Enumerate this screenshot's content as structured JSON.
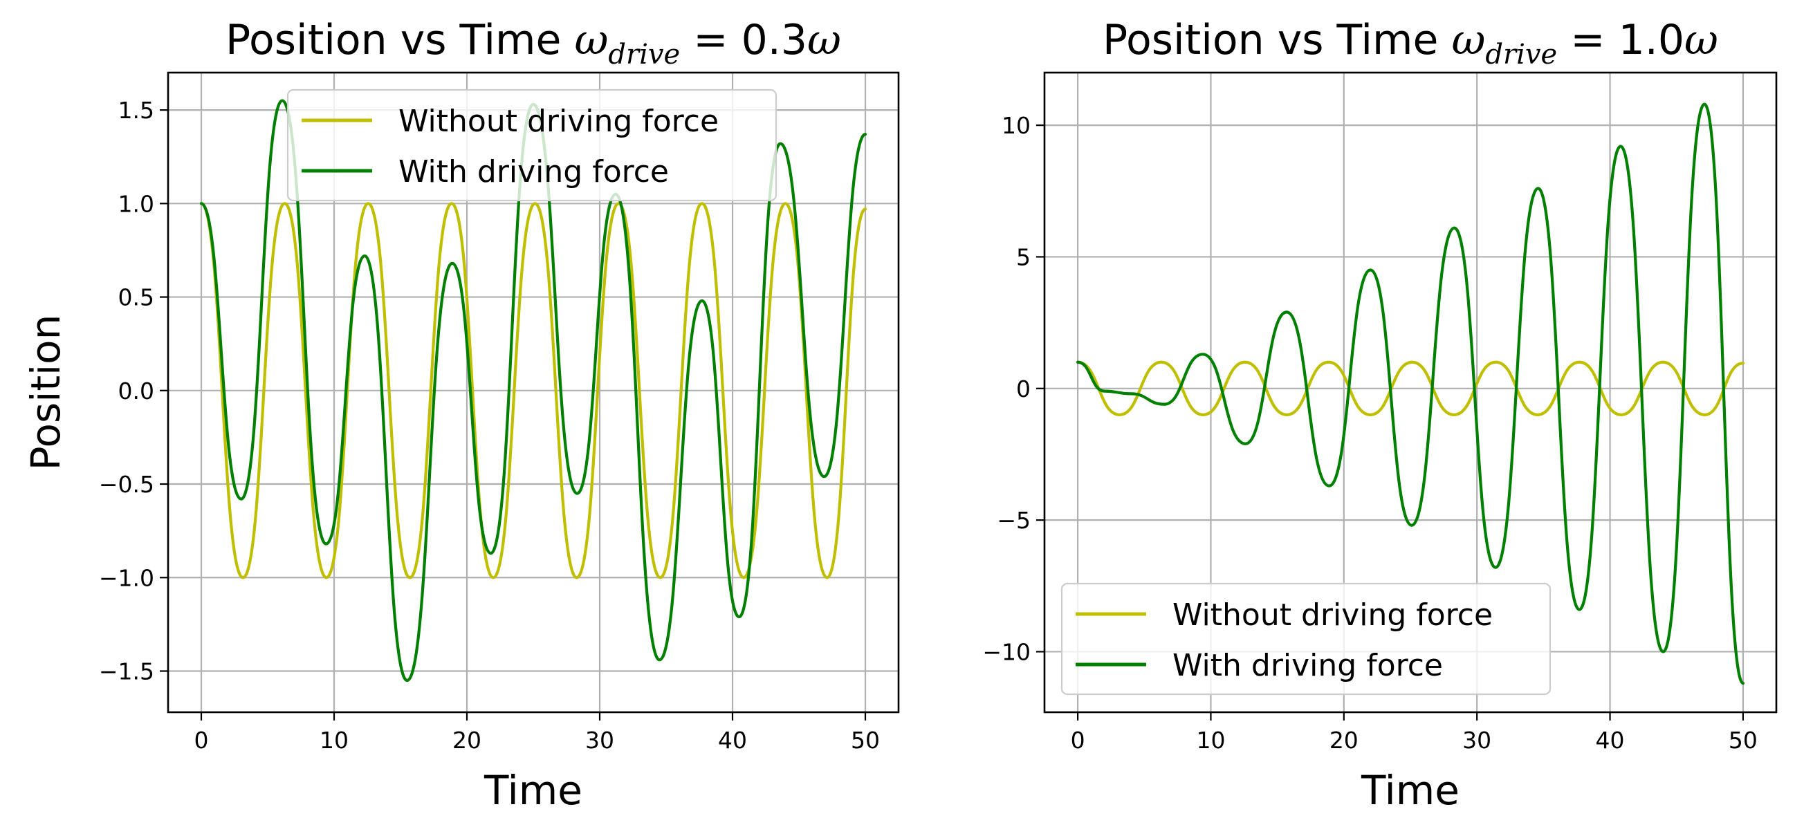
{
  "figure": {
    "background": "#ffffff"
  },
  "colors": {
    "without_driving_force": "#bfbf00",
    "with_driving_force": "#008000",
    "grid": "#b0b0b0"
  },
  "chart_data": [
    {
      "type": "line",
      "title": "Position vs Time",
      "title_math": {
        "omega": "ω",
        "subscript": "drive",
        "equals": " = ",
        "value": "0.3",
        "omega_end": "ω"
      },
      "xlabel": "Time",
      "ylabel": "Position",
      "xlim": [
        -2.5,
        52.5
      ],
      "ylim": [
        -1.72,
        1.7
      ],
      "xticks": [
        0,
        10,
        20,
        30,
        40,
        50
      ],
      "xtick_labels": [
        "0",
        "10",
        "20",
        "30",
        "40",
        "50"
      ],
      "yticks": [
        1.5,
        1.0,
        0.5,
        0.0,
        -0.5,
        -1.0,
        -1.5
      ],
      "ytick_labels": [
        "1.5",
        "1.0",
        "0.5",
        "0.0",
        "−0.5",
        "−1.0",
        "−1.5"
      ],
      "grid": true,
      "legend_position": "upper center",
      "series": [
        {
          "name": "Without driving force",
          "color": "#bfbf00",
          "x": [
            0,
            3.14,
            6.28,
            9.42,
            12.57,
            15.71,
            18.85,
            21.99,
            25.13,
            28.27,
            31.42,
            34.56,
            37.7,
            40.84,
            43.98,
            47.12,
            50
          ],
          "y": [
            1.0,
            -1.0,
            1.0,
            -1.0,
            1.0,
            -1.0,
            1.0,
            -1.0,
            1.0,
            -1.0,
            1.0,
            -1.0,
            1.0,
            -1.0,
            1.0,
            -1.0,
            0.97
          ]
        },
        {
          "name": "With driving force",
          "color": "#008000",
          "x": [
            0,
            3.0,
            6.1,
            9.4,
            12.3,
            15.5,
            18.9,
            21.8,
            25.0,
            28.3,
            31.2,
            34.5,
            37.7,
            40.5,
            43.6,
            46.9,
            50
          ],
          "y": [
            1.0,
            -0.58,
            1.55,
            -0.82,
            0.72,
            -1.55,
            0.68,
            -0.87,
            1.53,
            -0.55,
            1.05,
            -1.44,
            0.48,
            -1.21,
            1.32,
            -0.46,
            1.37
          ]
        }
      ]
    },
    {
      "type": "line",
      "title": "Position vs Time",
      "title_math": {
        "omega": "ω",
        "subscript": "drive",
        "equals": " = ",
        "value": "1.0",
        "omega_end": "ω"
      },
      "xlabel": "Time",
      "ylabel": "",
      "xlim": [
        -2.5,
        52.5
      ],
      "ylim": [
        -12.3,
        12.0
      ],
      "xticks": [
        0,
        10,
        20,
        30,
        40,
        50
      ],
      "xtick_labels": [
        "0",
        "10",
        "20",
        "30",
        "40",
        "50"
      ],
      "yticks": [
        10,
        5,
        0,
        -5,
        -10
      ],
      "ytick_labels": [
        "10",
        "5",
        "0",
        "−5",
        "−10"
      ],
      "grid": true,
      "legend_position": "lower left",
      "series": [
        {
          "name": "Without driving force",
          "color": "#bfbf00",
          "x": [
            0,
            3.14,
            6.28,
            9.42,
            12.57,
            15.71,
            18.85,
            21.99,
            25.13,
            28.27,
            31.42,
            34.56,
            37.7,
            40.84,
            43.98,
            47.12,
            50
          ],
          "y": [
            1.0,
            -1.0,
            1.0,
            -1.0,
            1.0,
            -1.0,
            1.0,
            -1.0,
            1.0,
            -1.0,
            1.0,
            -1.0,
            1.0,
            -1.0,
            1.0,
            -1.0,
            0.96
          ]
        },
        {
          "name": "With driving force",
          "color": "#008000",
          "x": [
            0,
            2.0,
            4.0,
            6.5,
            9.4,
            12.6,
            15.7,
            18.9,
            22.0,
            25.1,
            28.3,
            31.4,
            34.6,
            37.7,
            40.8,
            44.0,
            47.1,
            50
          ],
          "y": [
            1.0,
            -0.1,
            -0.2,
            -0.6,
            1.3,
            -2.1,
            2.9,
            -3.7,
            4.5,
            -5.2,
            6.1,
            -6.8,
            7.6,
            -8.4,
            9.2,
            -10.0,
            10.8,
            -11.2
          ]
        }
      ]
    }
  ]
}
